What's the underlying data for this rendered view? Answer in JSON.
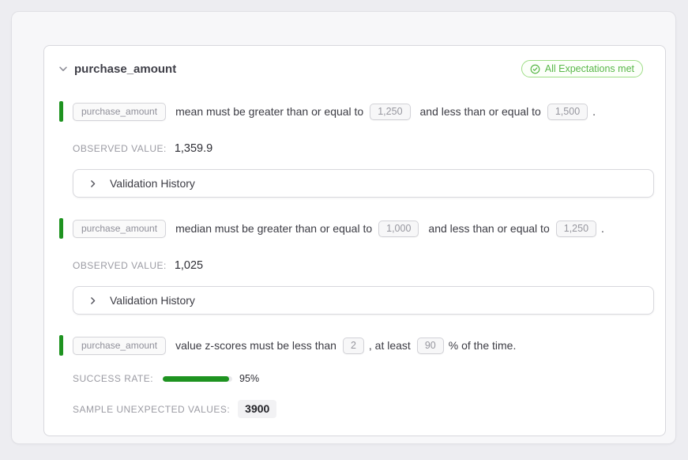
{
  "colors": {
    "page_background": "#ededf1",
    "accent_green": "#1e9320",
    "badge_green": "#58b748"
  },
  "card": {
    "title": "purchase_amount",
    "status_badge": {
      "label": "All Expectations met"
    }
  },
  "expectations": [
    {
      "column": "purchase_amount",
      "text_1": "mean must be greater than or equal to",
      "value_1": "1,250",
      "text_2": "and less than or equal to",
      "value_2": "1,500",
      "text_3": ".",
      "observed_label": "OBSERVED VALUE:",
      "observed_value": "1,359.9",
      "history_label": "Validation History"
    },
    {
      "column": "purchase_amount",
      "text_1": "median must be greater than or equal to",
      "value_1": "1,000",
      "text_2": "and less than or equal to",
      "value_2": "1,250",
      "text_3": ".",
      "observed_label": "OBSERVED VALUE:",
      "observed_value": "1,025",
      "history_label": "Validation History"
    },
    {
      "column": "purchase_amount",
      "text_1": "value z-scores must be less than",
      "value_1": "2",
      "text_2": ", at least",
      "value_2": "90",
      "text_3": "% of the time.",
      "success_label": "SUCCESS RATE:",
      "success_percent": 95,
      "success_value": "95%",
      "sample_label": "SAMPLE UNEXPECTED VALUES:",
      "sample_value": "3900"
    }
  ]
}
